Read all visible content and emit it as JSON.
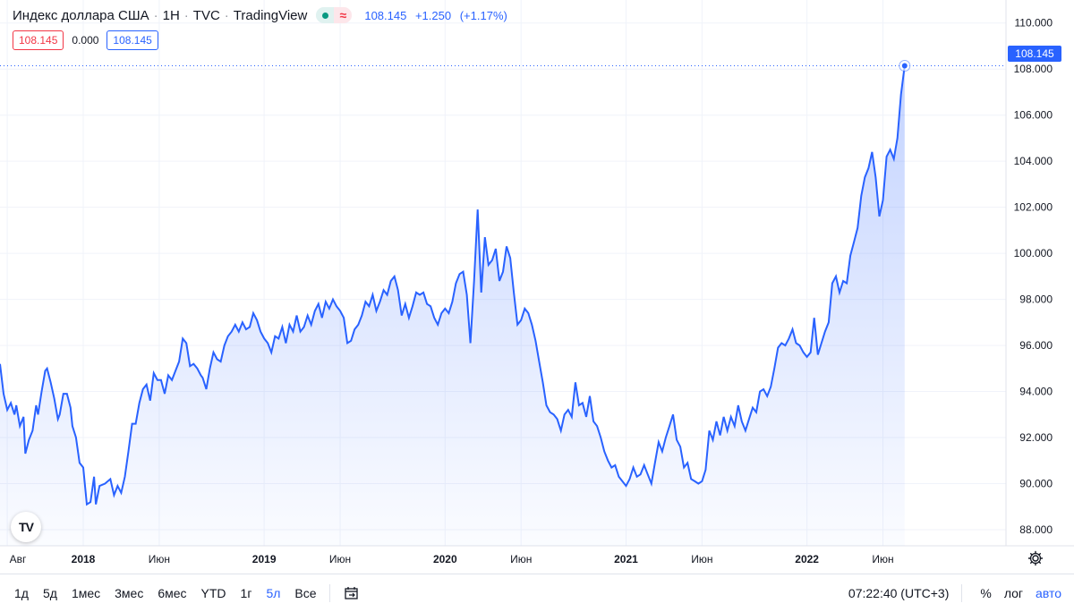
{
  "header": {
    "symbol": "Индекс доллара США",
    "interval": "1Н",
    "exchange": "TVC",
    "source": "TradingView",
    "last": "108.145",
    "change": "+1.250",
    "change_pct": "(+1.17%)"
  },
  "ohlc_row": {
    "left_value": "108.145",
    "mid_value": "0.000",
    "right_value": "108.145"
  },
  "price_tag": "108.145",
  "logo_text": "TV",
  "timeframes": [
    {
      "label": "1д"
    },
    {
      "label": "5д"
    },
    {
      "label": "1мес"
    },
    {
      "label": "3мес"
    },
    {
      "label": "6мес"
    },
    {
      "label": "YTD"
    },
    {
      "label": "1г"
    },
    {
      "label": "5л",
      "active": true
    },
    {
      "label": "Все"
    }
  ],
  "bottom_right": {
    "time": "07:22:40 (UTC+3)",
    "percent": "%",
    "log": "лог",
    "auto": "авто"
  },
  "colors": {
    "line": "#2962ff",
    "accent": "#2962ff",
    "down": "#f23645",
    "up": "#089981"
  },
  "chart_data": {
    "type": "area",
    "x_unit": "years (decimal)",
    "yticks": [
      "110.000",
      "108.000",
      "106.000",
      "104.000",
      "102.000",
      "100.000",
      "98.000",
      "96.000",
      "94.000",
      "92.000",
      "90.000",
      "88.000"
    ],
    "xticks": [
      {
        "label": "Авг",
        "x": 2017.58
      },
      {
        "label": "2018",
        "x": 2018.0
      },
      {
        "label": "Июн",
        "x": 2018.42
      },
      {
        "label": "2019",
        "x": 2019.0
      },
      {
        "label": "Июн",
        "x": 2019.42
      },
      {
        "label": "2020",
        "x": 2020.0
      },
      {
        "label": "Июн",
        "x": 2020.42
      },
      {
        "label": "2021",
        "x": 2021.0
      },
      {
        "label": "Июн",
        "x": 2021.42
      },
      {
        "label": "2022",
        "x": 2022.0
      },
      {
        "label": "Июн",
        "x": 2022.42
      }
    ],
    "ylim": [
      87.3,
      111.0
    ],
    "xlim": [
      2017.54,
      2023.1
    ],
    "grid": true,
    "legend": "none",
    "series": [
      {
        "values": [
          [
            2017.54,
            95.2
          ],
          [
            2017.56,
            93.9
          ],
          [
            2017.58,
            93.2
          ],
          [
            2017.6,
            93.5
          ],
          [
            2017.62,
            93.0
          ],
          [
            2017.63,
            93.4
          ],
          [
            2017.65,
            92.5
          ],
          [
            2017.67,
            92.9
          ],
          [
            2017.68,
            91.3
          ],
          [
            2017.7,
            91.9
          ],
          [
            2017.72,
            92.3
          ],
          [
            2017.74,
            93.4
          ],
          [
            2017.75,
            93.0
          ],
          [
            2017.77,
            94.0
          ],
          [
            2017.79,
            94.9
          ],
          [
            2017.8,
            95.0
          ],
          [
            2017.82,
            94.4
          ],
          [
            2017.84,
            93.7
          ],
          [
            2017.86,
            92.8
          ],
          [
            2017.87,
            93.0
          ],
          [
            2017.89,
            93.9
          ],
          [
            2017.91,
            93.9
          ],
          [
            2017.93,
            93.3
          ],
          [
            2017.94,
            92.5
          ],
          [
            2017.96,
            92.0
          ],
          [
            2017.98,
            90.9
          ],
          [
            2018.0,
            90.7
          ],
          [
            2018.02,
            89.1
          ],
          [
            2018.04,
            89.2
          ],
          [
            2018.06,
            90.3
          ],
          [
            2018.07,
            89.1
          ],
          [
            2018.09,
            89.9
          ],
          [
            2018.12,
            90.0
          ],
          [
            2018.15,
            90.2
          ],
          [
            2018.17,
            89.5
          ],
          [
            2018.19,
            89.9
          ],
          [
            2018.21,
            89.6
          ],
          [
            2018.23,
            90.3
          ],
          [
            2018.25,
            91.4
          ],
          [
            2018.27,
            92.6
          ],
          [
            2018.29,
            92.6
          ],
          [
            2018.31,
            93.5
          ],
          [
            2018.33,
            94.1
          ],
          [
            2018.35,
            94.3
          ],
          [
            2018.37,
            93.6
          ],
          [
            2018.39,
            94.8
          ],
          [
            2018.41,
            94.5
          ],
          [
            2018.43,
            94.5
          ],
          [
            2018.45,
            93.9
          ],
          [
            2018.47,
            94.7
          ],
          [
            2018.49,
            94.5
          ],
          [
            2018.51,
            94.9
          ],
          [
            2018.53,
            95.3
          ],
          [
            2018.55,
            96.3
          ],
          [
            2018.57,
            96.1
          ],
          [
            2018.59,
            95.1
          ],
          [
            2018.61,
            95.2
          ],
          [
            2018.63,
            95.0
          ],
          [
            2018.65,
            94.7
          ],
          [
            2018.66,
            94.6
          ],
          [
            2018.68,
            94.1
          ],
          [
            2018.7,
            95.0
          ],
          [
            2018.72,
            95.7
          ],
          [
            2018.74,
            95.4
          ],
          [
            2018.76,
            95.3
          ],
          [
            2018.78,
            96.0
          ],
          [
            2018.8,
            96.4
          ],
          [
            2018.82,
            96.6
          ],
          [
            2018.84,
            96.9
          ],
          [
            2018.86,
            96.6
          ],
          [
            2018.88,
            97.0
          ],
          [
            2018.9,
            96.7
          ],
          [
            2018.92,
            96.8
          ],
          [
            2018.94,
            97.4
          ],
          [
            2018.96,
            97.1
          ],
          [
            2018.98,
            96.6
          ],
          [
            2019.0,
            96.3
          ],
          [
            2019.02,
            96.1
          ],
          [
            2019.04,
            95.7
          ],
          [
            2019.06,
            96.4
          ],
          [
            2019.08,
            96.3
          ],
          [
            2019.1,
            96.8
          ],
          [
            2019.12,
            96.1
          ],
          [
            2019.14,
            96.9
          ],
          [
            2019.16,
            96.6
          ],
          [
            2019.18,
            97.3
          ],
          [
            2019.2,
            96.6
          ],
          [
            2019.22,
            96.8
          ],
          [
            2019.24,
            97.3
          ],
          [
            2019.26,
            96.9
          ],
          [
            2019.28,
            97.5
          ],
          [
            2019.3,
            97.8
          ],
          [
            2019.32,
            97.2
          ],
          [
            2019.34,
            97.9
          ],
          [
            2019.36,
            97.6
          ],
          [
            2019.38,
            98.0
          ],
          [
            2019.4,
            97.7
          ],
          [
            2019.42,
            97.5
          ],
          [
            2019.44,
            97.2
          ],
          [
            2019.46,
            96.1
          ],
          [
            2019.48,
            96.2
          ],
          [
            2019.5,
            96.7
          ],
          [
            2019.52,
            96.9
          ],
          [
            2019.54,
            97.3
          ],
          [
            2019.56,
            97.9
          ],
          [
            2019.58,
            97.7
          ],
          [
            2019.6,
            98.2
          ],
          [
            2019.62,
            97.5
          ],
          [
            2019.64,
            97.9
          ],
          [
            2019.66,
            98.4
          ],
          [
            2019.68,
            98.2
          ],
          [
            2019.7,
            98.8
          ],
          [
            2019.72,
            99.0
          ],
          [
            2019.74,
            98.4
          ],
          [
            2019.76,
            97.3
          ],
          [
            2019.78,
            97.8
          ],
          [
            2019.8,
            97.2
          ],
          [
            2019.82,
            97.7
          ],
          [
            2019.84,
            98.3
          ],
          [
            2019.86,
            98.2
          ],
          [
            2019.88,
            98.3
          ],
          [
            2019.9,
            97.8
          ],
          [
            2019.92,
            97.7
          ],
          [
            2019.94,
            97.2
          ],
          [
            2019.96,
            96.9
          ],
          [
            2019.98,
            97.4
          ],
          [
            2020.0,
            97.6
          ],
          [
            2020.02,
            97.4
          ],
          [
            2020.04,
            97.9
          ],
          [
            2020.06,
            98.7
          ],
          [
            2020.08,
            99.1
          ],
          [
            2020.1,
            99.2
          ],
          [
            2020.12,
            98.2
          ],
          [
            2020.14,
            96.1
          ],
          [
            2020.16,
            98.8
          ],
          [
            2020.18,
            101.9
          ],
          [
            2020.2,
            98.3
          ],
          [
            2020.22,
            100.7
          ],
          [
            2020.24,
            99.5
          ],
          [
            2020.26,
            99.7
          ],
          [
            2020.28,
            100.2
          ],
          [
            2020.3,
            98.8
          ],
          [
            2020.32,
            99.2
          ],
          [
            2020.34,
            100.3
          ],
          [
            2020.36,
            99.8
          ],
          [
            2020.38,
            98.3
          ],
          [
            2020.4,
            96.9
          ],
          [
            2020.42,
            97.1
          ],
          [
            2020.44,
            97.6
          ],
          [
            2020.46,
            97.4
          ],
          [
            2020.48,
            96.9
          ],
          [
            2020.5,
            96.2
          ],
          [
            2020.52,
            95.3
          ],
          [
            2020.54,
            94.4
          ],
          [
            2020.56,
            93.4
          ],
          [
            2020.58,
            93.1
          ],
          [
            2020.6,
            93.0
          ],
          [
            2020.62,
            92.8
          ],
          [
            2020.64,
            92.3
          ],
          [
            2020.66,
            93.0
          ],
          [
            2020.68,
            93.2
          ],
          [
            2020.7,
            92.9
          ],
          [
            2020.72,
            94.4
          ],
          [
            2020.74,
            93.4
          ],
          [
            2020.76,
            93.5
          ],
          [
            2020.78,
            92.9
          ],
          [
            2020.8,
            93.8
          ],
          [
            2020.82,
            92.7
          ],
          [
            2020.84,
            92.5
          ],
          [
            2020.86,
            92.0
          ],
          [
            2020.88,
            91.4
          ],
          [
            2020.9,
            91.0
          ],
          [
            2020.92,
            90.7
          ],
          [
            2020.94,
            90.8
          ],
          [
            2020.96,
            90.3
          ],
          [
            2020.98,
            90.1
          ],
          [
            2021.0,
            89.9
          ],
          [
            2021.02,
            90.2
          ],
          [
            2021.04,
            90.7
          ],
          [
            2021.06,
            90.3
          ],
          [
            2021.08,
            90.4
          ],
          [
            2021.1,
            90.8
          ],
          [
            2021.12,
            90.4
          ],
          [
            2021.14,
            90.0
          ],
          [
            2021.16,
            90.9
          ],
          [
            2021.18,
            91.8
          ],
          [
            2021.2,
            91.4
          ],
          [
            2021.22,
            92.0
          ],
          [
            2021.24,
            92.5
          ],
          [
            2021.26,
            93.0
          ],
          [
            2021.28,
            91.9
          ],
          [
            2021.3,
            91.6
          ],
          [
            2021.32,
            90.7
          ],
          [
            2021.34,
            90.9
          ],
          [
            2021.36,
            90.2
          ],
          [
            2021.38,
            90.1
          ],
          [
            2021.4,
            90.0
          ],
          [
            2021.42,
            90.1
          ],
          [
            2021.44,
            90.6
          ],
          [
            2021.46,
            92.3
          ],
          [
            2021.48,
            91.9
          ],
          [
            2021.5,
            92.7
          ],
          [
            2021.52,
            92.1
          ],
          [
            2021.54,
            92.9
          ],
          [
            2021.56,
            92.3
          ],
          [
            2021.58,
            92.9
          ],
          [
            2021.6,
            92.5
          ],
          [
            2021.62,
            93.4
          ],
          [
            2021.64,
            92.7
          ],
          [
            2021.66,
            92.3
          ],
          [
            2021.68,
            92.8
          ],
          [
            2021.7,
            93.3
          ],
          [
            2021.72,
            93.1
          ],
          [
            2021.74,
            94.0
          ],
          [
            2021.76,
            94.1
          ],
          [
            2021.78,
            93.8
          ],
          [
            2021.8,
            94.2
          ],
          [
            2021.82,
            95.0
          ],
          [
            2021.84,
            95.9
          ],
          [
            2021.86,
            96.1
          ],
          [
            2021.88,
            96.0
          ],
          [
            2021.9,
            96.3
          ],
          [
            2021.92,
            96.7
          ],
          [
            2021.94,
            96.1
          ],
          [
            2021.96,
            96.0
          ],
          [
            2021.98,
            95.7
          ],
          [
            2022.0,
            95.5
          ],
          [
            2022.02,
            95.7
          ],
          [
            2022.04,
            97.2
          ],
          [
            2022.06,
            95.6
          ],
          [
            2022.08,
            96.1
          ],
          [
            2022.1,
            96.6
          ],
          [
            2022.12,
            97.0
          ],
          [
            2022.14,
            98.7
          ],
          [
            2022.16,
            99.0
          ],
          [
            2022.18,
            98.3
          ],
          [
            2022.2,
            98.8
          ],
          [
            2022.22,
            98.7
          ],
          [
            2022.24,
            99.9
          ],
          [
            2022.26,
            100.5
          ],
          [
            2022.28,
            101.1
          ],
          [
            2022.3,
            102.5
          ],
          [
            2022.32,
            103.3
          ],
          [
            2022.34,
            103.7
          ],
          [
            2022.36,
            104.4
          ],
          [
            2022.38,
            103.3
          ],
          [
            2022.4,
            101.6
          ],
          [
            2022.42,
            102.3
          ],
          [
            2022.44,
            104.2
          ],
          [
            2022.46,
            104.5
          ],
          [
            2022.48,
            104.1
          ],
          [
            2022.5,
            105.0
          ],
          [
            2022.52,
            106.9
          ],
          [
            2022.54,
            108.145
          ]
        ]
      }
    ]
  }
}
